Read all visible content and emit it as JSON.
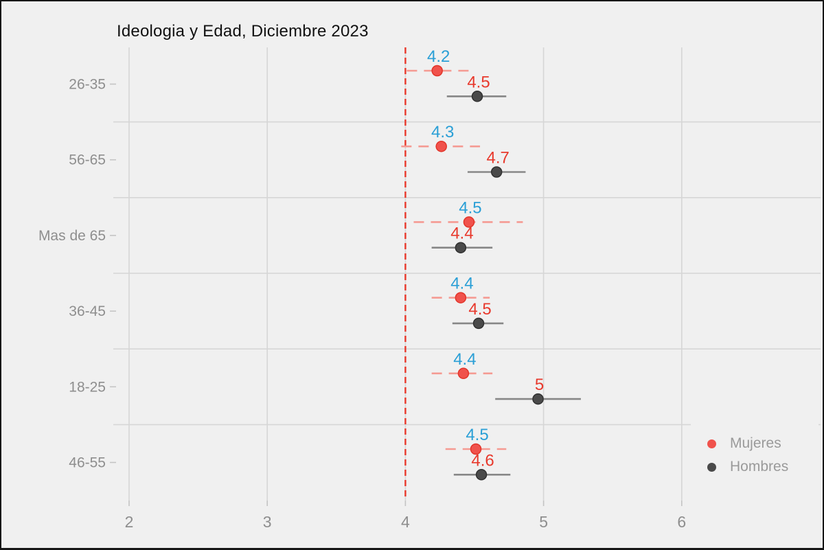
{
  "chart_data": {
    "type": "scatter",
    "title": "Ideologia y Edad, Diciembre 2023",
    "xlabel": "",
    "ylabel": "",
    "categories": [
      "26-35",
      "56-65",
      "Mas de 65",
      "36-45",
      "18-25",
      "46-55"
    ],
    "x_ticks": [
      "2",
      "3",
      "4",
      "5",
      "6"
    ],
    "xlim": [
      1.9,
      7.0
    ],
    "grid": true,
    "reference_line": {
      "x": 4,
      "color": "#e8392c",
      "style": "dashed"
    },
    "legend": {
      "position": "bottom-right-inside"
    },
    "series": [
      {
        "name": "Mujeres",
        "color": "#f0524c",
        "bar_color": "#f59a92",
        "label_color": "#2a9fd6",
        "dashed": true,
        "points": [
          {
            "category": "26-35",
            "label": "4.2",
            "value": 4.23,
            "lo": 4.01,
            "hi": 4.46
          },
          {
            "category": "56-65",
            "label": "4.3",
            "value": 4.26,
            "lo": 3.97,
            "hi": 4.54
          },
          {
            "category": "Mas de 65",
            "label": "4.5",
            "value": 4.46,
            "lo": 4.06,
            "hi": 4.85
          },
          {
            "category": "36-45",
            "label": "4.4",
            "value": 4.4,
            "lo": 4.19,
            "hi": 4.61
          },
          {
            "category": "18-25",
            "label": "4.4",
            "value": 4.42,
            "lo": 4.19,
            "hi": 4.63
          },
          {
            "category": "46-55",
            "label": "4.5",
            "value": 4.51,
            "lo": 4.29,
            "hi": 4.73
          }
        ]
      },
      {
        "name": "Hombres",
        "color": "#4a4a4a",
        "bar_color": "#878787",
        "label_color": "#e8392c",
        "dashed": false,
        "points": [
          {
            "category": "26-35",
            "label": "4.5",
            "value": 4.52,
            "lo": 4.3,
            "hi": 4.73
          },
          {
            "category": "56-65",
            "label": "4.7",
            "value": 4.66,
            "lo": 4.45,
            "hi": 4.87
          },
          {
            "category": "Mas de 65",
            "label": "4.4",
            "value": 4.4,
            "lo": 4.19,
            "hi": 4.63
          },
          {
            "category": "36-45",
            "label": "4.5",
            "value": 4.53,
            "lo": 4.34,
            "hi": 4.71
          },
          {
            "category": "18-25",
            "label": "5",
            "value": 4.96,
            "lo": 4.65,
            "hi": 5.27
          },
          {
            "category": "46-55",
            "label": "4.6",
            "value": 4.55,
            "lo": 4.35,
            "hi": 4.76
          }
        ]
      }
    ]
  }
}
